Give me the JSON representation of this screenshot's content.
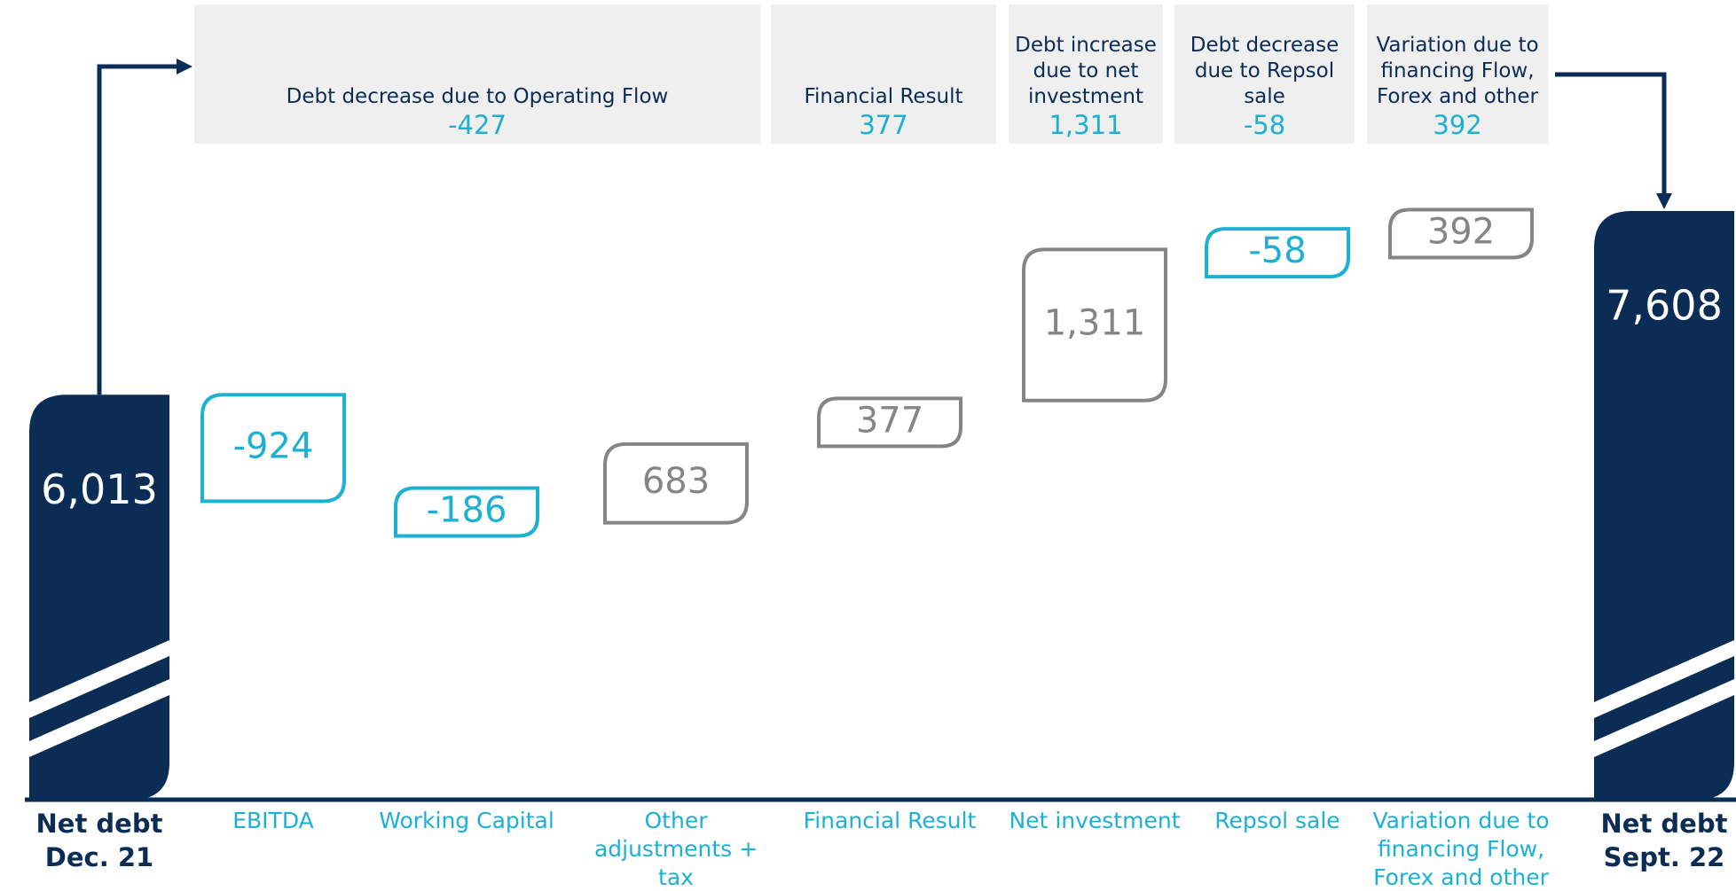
{
  "chart_data": {
    "type": "waterfall",
    "categories": [
      "Net debt Dec. 21",
      "EBITDA",
      "Working Capital",
      "Other adjustments + tax",
      "Financial Result",
      "Net investment",
      "Repsol sale",
      "Variation due to financing Flow, Forex and other (I)",
      "Net debt Sept. 22"
    ],
    "values": [
      6013,
      -924,
      -186,
      683,
      377,
      1311,
      -58,
      392,
      7608
    ],
    "value_labels": [
      "6,013",
      "-924",
      "-186",
      "683",
      "377",
      "1,311",
      "-58",
      "392",
      "7,608"
    ],
    "groups": [
      {
        "label": "Debt decrease due to Operating Flow",
        "value": "-427"
      },
      {
        "label": "Financial Result",
        "value": "377"
      },
      {
        "label": "Debt increase due to net investment",
        "value": "1,311"
      },
      {
        "label": "Debt decrease due to Repsol sale",
        "value": "-58"
      },
      {
        "label": "Variation due to financing Flow, Forex and other",
        "value": "392"
      }
    ],
    "ylim": [
      2500,
      8000
    ],
    "colors": {
      "total": "#0b2c54",
      "decrease": "#1cb0d3",
      "increase": "#858585"
    }
  }
}
